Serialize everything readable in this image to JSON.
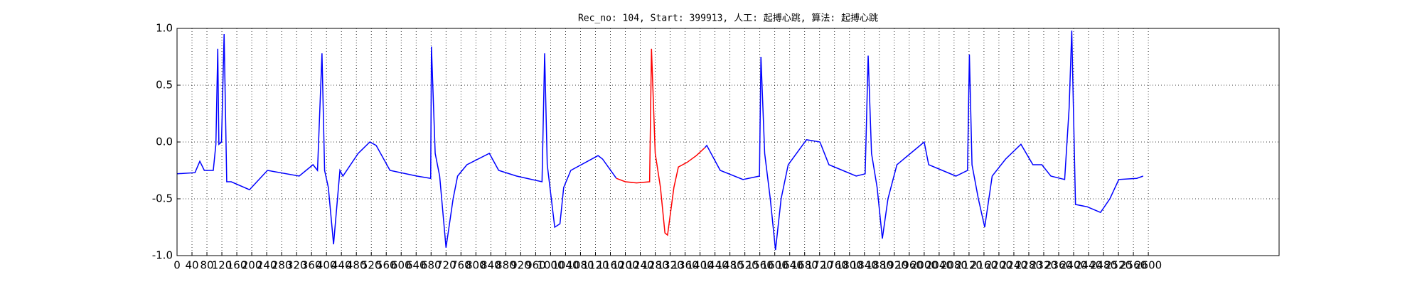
{
  "chart_data": {
    "type": "line",
    "title": "Rec_no: 104, Start: 399913, 人工: 起搏心跳, 算法: 起搏心跳",
    "xlim": [
      0,
      2950
    ],
    "ylim": [
      -1,
      1
    ],
    "xticks": [
      0,
      40,
      80,
      120,
      160,
      200,
      240,
      280,
      320,
      360,
      400,
      440,
      480,
      520,
      560,
      600,
      640,
      680,
      720,
      760,
      800,
      840,
      880,
      920,
      960,
      1000,
      1040,
      1080,
      1120,
      1160,
      1200,
      1240,
      1280,
      1320,
      1360,
      1400,
      1440,
      1480,
      1520,
      1560,
      1600,
      1640,
      1680,
      1720,
      1760,
      1800,
      1840,
      1880,
      1920,
      1960,
      2000,
      2040,
      2080,
      2120,
      2160,
      2200,
      2240,
      2280,
      2320,
      2360,
      2400,
      2440,
      2480,
      2520,
      2560,
      2600
    ],
    "yticks": [
      {
        "value": 1,
        "label": "1.0"
      },
      0.5,
      {
        "value": 0,
        "label": "0.0"
      },
      -0.5,
      {
        "value": -1,
        "label": "-1.0"
      }
    ],
    "grid": true,
    "series": [
      {
        "color": "#0000ff",
        "x": [
          0,
          48,
          61,
          73,
          97,
          104,
          109,
          112,
          119,
          126,
          133,
          145,
          194,
          242,
          327,
          364,
          376,
          388,
          395,
          405,
          419,
          436,
          444,
          485,
          516,
          533,
          570,
          642,
          679,
          681,
          691,
          703,
          720,
          739,
          751,
          776,
          836,
          861,
          909,
          977,
          984,
          991,
          1011,
          1025,
          1035,
          1054,
          1127,
          1139,
          1176,
          1290,
          1413,
          1418,
          1454,
          1515,
          1559,
          1563,
          1573,
          1588,
          1602,
          1617,
          1636,
          1685,
          1721,
          1745,
          1818,
          1842,
          1850,
          1859,
          1874,
          1888,
          1903,
          1927,
          2000,
          2012,
          2085,
          2116,
          2121,
          2128,
          2145,
          2162,
          2182,
          2218,
          2259,
          2291,
          2315,
          2339,
          2376,
          2388,
          2395,
          2405,
          2436,
          2472,
          2497,
          2521,
          2569,
          2586
        ],
        "values": [
          -0.28,
          -0.27,
          -0.17,
          -0.25,
          -0.25,
          -0.02,
          0.82,
          -0.02,
          0.0,
          0.95,
          -0.35,
          -0.35,
          -0.42,
          -0.25,
          -0.3,
          -0.2,
          -0.25,
          0.78,
          -0.25,
          -0.4,
          -0.9,
          -0.25,
          -0.3,
          -0.1,
          0.0,
          -0.03,
          -0.25,
          -0.3,
          -0.32,
          0.84,
          -0.1,
          -0.3,
          -0.93,
          -0.5,
          -0.3,
          -0.2,
          -0.1,
          -0.25,
          -0.3,
          -0.35,
          0.78,
          -0.2,
          -0.75,
          -0.72,
          -0.4,
          -0.25,
          -0.12,
          -0.15,
          -0.32,
          null,
          -0.05,
          -0.03,
          -0.25,
          -0.33,
          -0.3,
          0.75,
          -0.1,
          -0.5,
          -0.95,
          -0.5,
          -0.2,
          0.02,
          0.0,
          -0.2,
          -0.3,
          -0.28,
          0.76,
          -0.1,
          -0.4,
          -0.85,
          -0.5,
          -0.2,
          0.0,
          -0.2,
          -0.3,
          -0.25,
          0.77,
          -0.2,
          -0.5,
          -0.75,
          -0.3,
          -0.15,
          -0.02,
          -0.2,
          -0.2,
          -0.3,
          -0.33,
          0.3,
          0.98,
          -0.55,
          -0.57,
          -0.62,
          -0.5,
          -0.33,
          -0.32,
          -0.3
        ]
      },
      {
        "color": "#ff0000",
        "x": [
          1176,
          1200,
          1230,
          1265,
          1270,
          1280,
          1294,
          1306,
          1313,
          1330,
          1342,
          1365,
          1390,
          1413
        ],
        "values": [
          -0.32,
          -0.35,
          -0.36,
          -0.35,
          0.82,
          -0.1,
          -0.4,
          -0.8,
          -0.82,
          -0.4,
          -0.22,
          -0.18,
          -0.12,
          -0.05
        ]
      }
    ]
  }
}
